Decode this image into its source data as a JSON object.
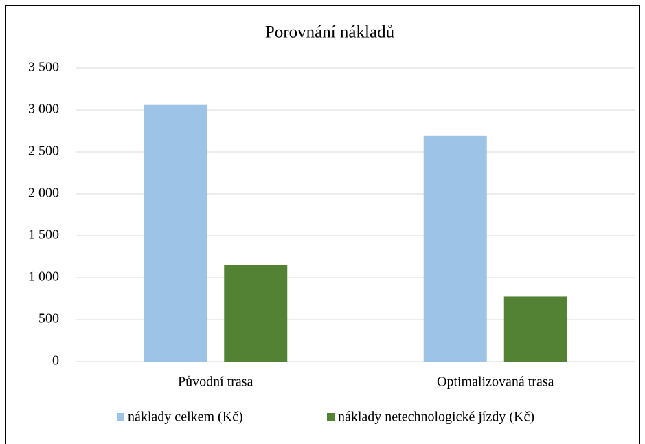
{
  "chart_data": {
    "type": "bar",
    "title": "Porovnání nákladů",
    "categories": [
      "Původní trasa",
      "Optimalizovaná trasa"
    ],
    "series": [
      {
        "name": "náklady celkem (Kč)",
        "color": "#9dc3e6",
        "values": [
          3060,
          2690
        ]
      },
      {
        "name": "náklady netechnologické jízdy (Kč)",
        "color": "#548235",
        "values": [
          1150,
          775
        ]
      }
    ],
    "ylim": [
      0,
      3500
    ],
    "yticks": [
      0,
      500,
      {
        "value": 1000,
        "label": "1 000"
      },
      {
        "value": 1500,
        "label": "1 500"
      },
      {
        "value": 2000,
        "label": "2 000"
      },
      {
        "value": 2500,
        "label": "2 500"
      },
      {
        "value": 3000,
        "label": "3 000"
      },
      {
        "value": 3500,
        "label": "3 500"
      }
    ],
    "grid": true,
    "legend": "bottom"
  }
}
